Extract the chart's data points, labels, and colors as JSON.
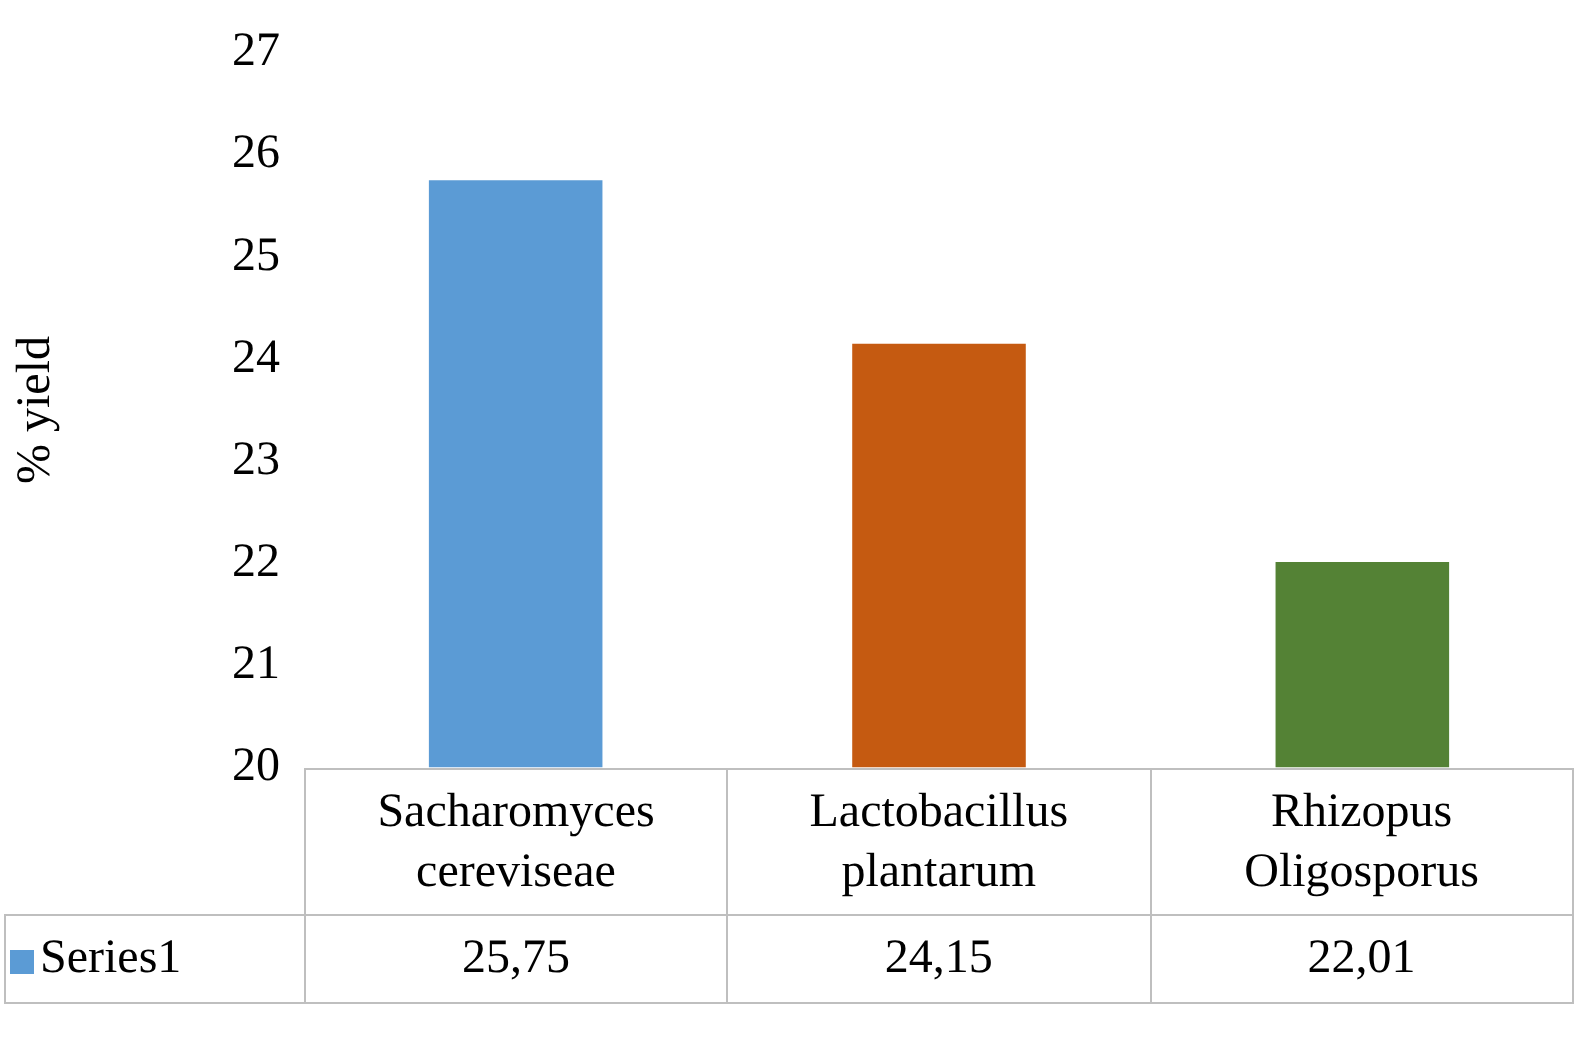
{
  "chart_data": {
    "type": "bar",
    "ylabel": "% yield",
    "categories": [
      "Sacharomyces cereviseae",
      "Lactobacillus plantarum",
      "Rhizopus Oligosporus"
    ],
    "series": [
      {
        "name": "Series1",
        "colors": [
          "#5b9bd5",
          "#c55a11",
          "#548235"
        ],
        "values": [
          25.75,
          24.15,
          22.01
        ],
        "value_labels": [
          "25,75",
          "24,15",
          "22,01"
        ]
      }
    ],
    "ylim": [
      20,
      27
    ],
    "yticks": [
      20,
      21,
      22,
      23,
      24,
      25,
      26,
      27
    ],
    "grid": false,
    "legend": "bottom"
  }
}
